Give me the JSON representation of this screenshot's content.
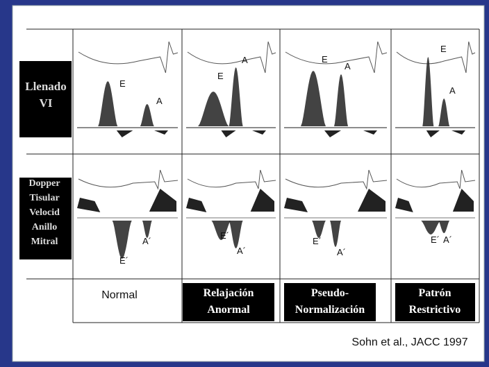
{
  "row_labels": [
    [
      "Llenado",
      "VI"
    ],
    [
      "Dopper",
      "Tisular",
      "Velocid",
      "Anillo",
      "Mitral"
    ]
  ],
  "columns": [
    [
      "Normal"
    ],
    [
      "Relajación",
      "Anormal"
    ],
    [
      "Pseudo-",
      "Normalización"
    ],
    [
      "Patrón",
      "Restrictivo"
    ]
  ],
  "panels": [
    {
      "filling": [
        "E",
        "A"
      ],
      "tissue": [
        "E´",
        "A´"
      ]
    },
    {
      "filling": [
        "E",
        "A"
      ],
      "tissue": [
        "E´",
        "A´"
      ]
    },
    {
      "filling": [
        "E",
        "A"
      ],
      "tissue": [
        "E´",
        "A´"
      ]
    },
    {
      "filling": [
        "E",
        "A"
      ],
      "tissue": [
        "E´",
        "A´"
      ]
    }
  ],
  "citation": "Sohn et al., JACC 1997"
}
